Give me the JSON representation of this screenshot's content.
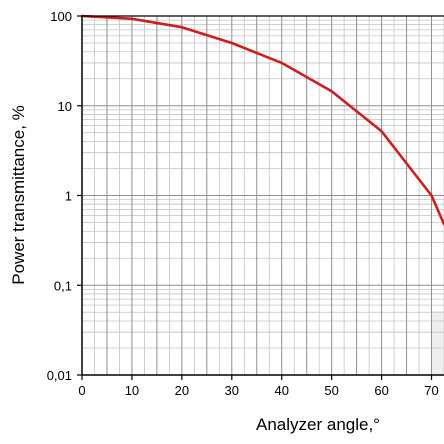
{
  "chart_data": {
    "type": "line",
    "title": "",
    "xlabel": "Analyzer angle,°",
    "ylabel": "Power transmittance, %",
    "yscale": "log",
    "grid": true,
    "xlim": [
      0,
      72.5
    ],
    "ylim": [
      0.01,
      100
    ],
    "x_ticks": [
      0,
      10,
      20,
      30,
      40,
      50,
      60,
      70
    ],
    "x_tick_labels": [
      "0",
      "10",
      "20",
      "30",
      "40",
      "50",
      "60",
      "70"
    ],
    "y_ticks": [
      0.01,
      0.1,
      1,
      10,
      100
    ],
    "y_tick_labels": [
      "0,01",
      "0,1",
      "1",
      "10",
      "100"
    ],
    "series": [
      {
        "name": "",
        "color": "#cc1f1f",
        "x": [
          0,
          10,
          20,
          30,
          40,
          50,
          60,
          70,
          72.5
        ],
        "y": [
          100,
          93,
          75,
          50,
          30,
          14.5,
          5.2,
          1.0,
          0.48
        ]
      }
    ]
  },
  "colors": {
    "major_grid": "#8f8f8f",
    "minor_grid": "#c4c4c4",
    "axis": "#000000",
    "shaded_region": "#efefef"
  }
}
